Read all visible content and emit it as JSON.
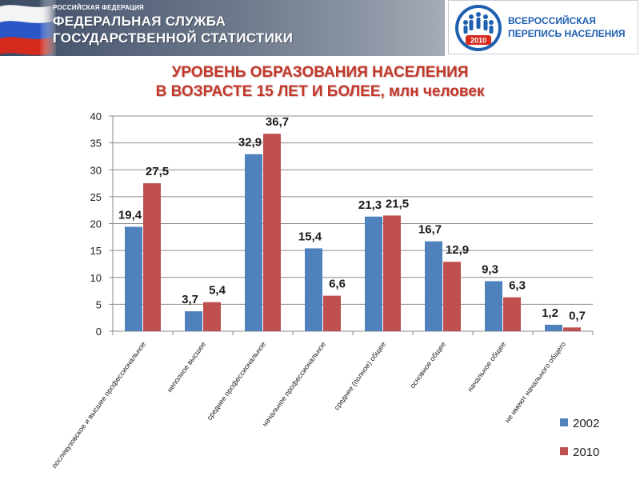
{
  "header": {
    "agency_sup": "РОССИЙСКАЯ ФЕДЕРАЦИЯ",
    "agency_line1": "ФЕДЕРАЛЬНАЯ СЛУЖБА",
    "agency_line2": "ГОСУДАРСТВЕННОЙ СТАТИСТИКИ",
    "census_line1": "ВСЕРОССИЙСКАЯ",
    "census_line2": "ПЕРЕПИСЬ НАСЕЛЕНИЯ",
    "census_year": "2010"
  },
  "colors": {
    "series_2002": "#4f81bd",
    "series_2010": "#c0504d",
    "title": "#c0392b"
  },
  "chart_data": {
    "type": "bar",
    "title_line1": "УРОВЕНЬ ОБРАЗОВАНИЯ НАСЕЛЕНИЯ",
    "title_line2": "В ВОЗРАСТЕ 15 ЛЕТ И БОЛЕЕ, млн человек",
    "categories": [
      "послевузовское и высшее профессиональное",
      "неполное высшее",
      "среднее профессиональное",
      "начальное профессиональное",
      "среднее (полное) общее",
      "основное общее",
      "начальное общее",
      "не имеют начального общего"
    ],
    "series": [
      {
        "name": "2002",
        "values": [
          19.4,
          3.7,
          32.9,
          15.4,
          21.3,
          16.7,
          9.3,
          1.2
        ],
        "labels": [
          "19,4",
          "3,7",
          "32,9",
          "15,4",
          "21,3",
          "16,7",
          "9,3",
          "1,2"
        ]
      },
      {
        "name": "2010",
        "values": [
          27.5,
          5.4,
          36.7,
          6.6,
          21.5,
          12.9,
          6.3,
          0.7
        ],
        "labels": [
          "27,5",
          "5,4",
          "36,7",
          "6,6",
          "21,5",
          "12,9",
          "6,3",
          "0,7"
        ]
      }
    ],
    "yticks": [
      0,
      5,
      10,
      15,
      20,
      25,
      30,
      35,
      40
    ],
    "ylim": [
      0,
      40
    ],
    "grid": true,
    "legend": "right"
  }
}
